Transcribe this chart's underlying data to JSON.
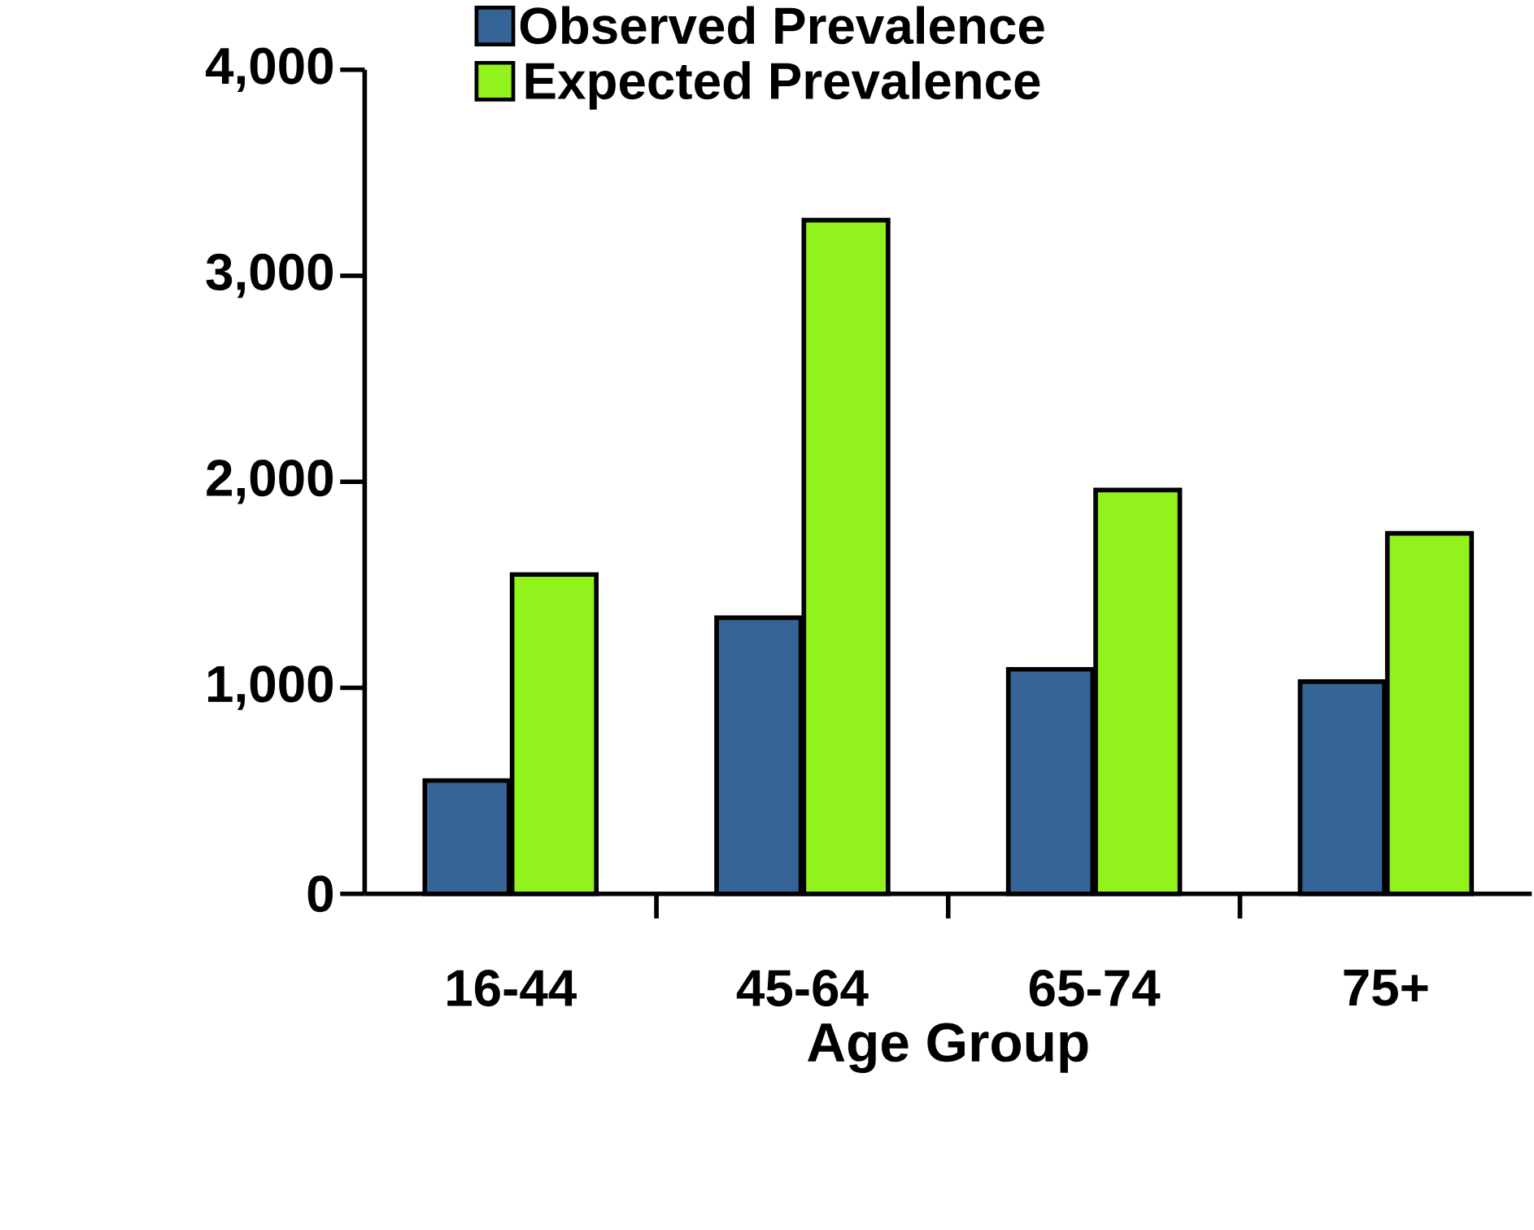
{
  "chart_data": {
    "type": "bar",
    "xlabel": "Age Group",
    "categories": [
      "16-44",
      "45-64",
      "65-74",
      "75+"
    ],
    "series": [
      {
        "name": "Observed Prevalence",
        "color": "#356596",
        "values": [
          550,
          1340,
          1090,
          1030
        ]
      },
      {
        "name": "Expected Prevalence",
        "color": "#92f21c",
        "values": [
          1550,
          3270,
          1960,
          1750
        ]
      }
    ],
    "ylim": [
      0,
      4000
    ],
    "yticks": [
      0,
      {
        "value": 1000,
        "label": "1,000"
      },
      {
        "value": 2000,
        "label": "2,000"
      },
      {
        "value": 3000,
        "label": "3,000"
      },
      {
        "value": 4000,
        "label": "4,000"
      }
    ],
    "grid": false,
    "legend": "top"
  }
}
